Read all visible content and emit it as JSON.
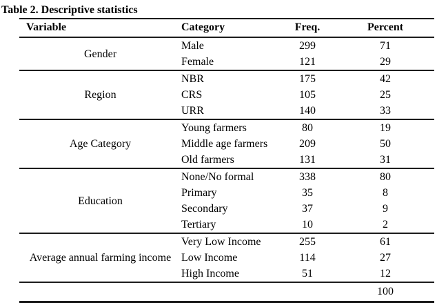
{
  "page": {
    "background": "#ffffff",
    "text_color": "#000000",
    "rule_color": "#1c1c1c"
  },
  "title": "Table 2. Descriptive statistics",
  "table": {
    "headers": [
      "Variable",
      "Category",
      "Freq.",
      "Percent"
    ],
    "groups": [
      {
        "variable": "Gender",
        "rows": [
          {
            "category": "Male",
            "freq": "299",
            "percent": "71"
          },
          {
            "category": "Female",
            "freq": "121",
            "percent": "29"
          }
        ]
      },
      {
        "variable": "Region",
        "rows": [
          {
            "category": "NBR",
            "freq": "175",
            "percent": "42"
          },
          {
            "category": "CRS",
            "freq": "105",
            "percent": "25"
          },
          {
            "category": "URR",
            "freq": "140",
            "percent": "33"
          }
        ]
      },
      {
        "variable": "Age Category",
        "rows": [
          {
            "category": "Young farmers",
            "freq": "80",
            "percent": "19"
          },
          {
            "category": "Middle age farmers",
            "freq": "209",
            "percent": "50"
          },
          {
            "category": "Old farmers",
            "freq": "131",
            "percent": "31"
          }
        ]
      },
      {
        "variable": "Education",
        "rows": [
          {
            "category": "None/No formal",
            "freq": "338",
            "percent": "80"
          },
          {
            "category": "Primary",
            "freq": "35",
            "percent": "8"
          },
          {
            "category": "Secondary",
            "freq": "37",
            "percent": "9"
          },
          {
            "category": "Tertiary",
            "freq": "10",
            "percent": "2"
          }
        ]
      },
      {
        "variable": "Average annual farming income",
        "rows": [
          {
            "category": "Very Low Income",
            "freq": "255",
            "percent": "61"
          },
          {
            "category": "Low Income",
            "freq": "114",
            "percent": "27"
          },
          {
            "category": "High Income",
            "freq": "51",
            "percent": "12"
          }
        ]
      }
    ],
    "total_percent": "100"
  },
  "chart_data": {
    "type": "table",
    "title": "Table 2. Descriptive statistics",
    "columns": [
      "Variable",
      "Category",
      "Freq.",
      "Percent"
    ],
    "rows": [
      [
        "Gender",
        "Male",
        299,
        71
      ],
      [
        "Gender",
        "Female",
        121,
        29
      ],
      [
        "Region",
        "NBR",
        175,
        42
      ],
      [
        "Region",
        "CRS",
        105,
        25
      ],
      [
        "Region",
        "URR",
        140,
        33
      ],
      [
        "Age Category",
        "Young farmers",
        80,
        19
      ],
      [
        "Age Category",
        "Middle age farmers",
        209,
        50
      ],
      [
        "Age Category",
        "Old farmers",
        131,
        31
      ],
      [
        "Education",
        "None/No formal",
        338,
        80
      ],
      [
        "Education",
        "Primary",
        35,
        8
      ],
      [
        "Education",
        "Secondary",
        37,
        9
      ],
      [
        "Education",
        "Tertiary",
        10,
        2
      ],
      [
        "Average annual farming income",
        "Very Low Income",
        255,
        61
      ],
      [
        "Average annual farming income",
        "Low Income",
        114,
        27
      ],
      [
        "Average annual farming income",
        "High Income",
        51,
        12
      ],
      [
        "",
        "",
        null,
        100
      ]
    ]
  }
}
